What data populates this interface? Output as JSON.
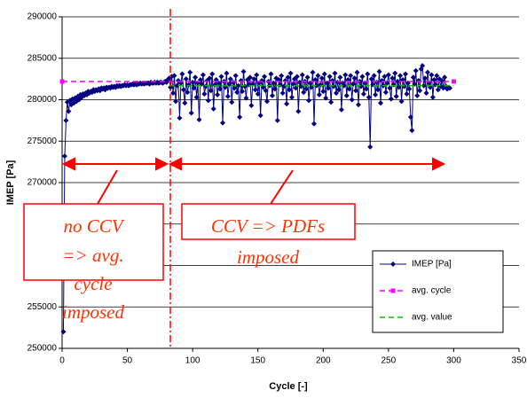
{
  "chart_data": {
    "type": "line",
    "x_label": "Cycle [-]",
    "y_label": "IMEP [Pa]",
    "xlim": [
      0,
      350
    ],
    "xticks": [
      0,
      50,
      100,
      150,
      200,
      250,
      300,
      350
    ],
    "ylim": [
      250000,
      290000
    ],
    "yticks": [
      250000,
      255000,
      260000,
      265000,
      270000,
      275000,
      280000,
      285000,
      290000
    ],
    "grid": true,
    "legend": "lower right",
    "annotations": [
      {
        "lines": [
          "no CCV",
          "=> avg.",
          "cycle",
          "imposed"
        ]
      },
      {
        "lines": [
          "CCV => PDFs",
          "imposed"
        ]
      }
    ],
    "series": [
      {
        "name": "IMEP [Pa]",
        "color": "#000080",
        "marker": "diamond",
        "x": [
          1,
          2,
          3,
          4,
          5,
          6,
          7,
          8,
          9,
          10,
          11,
          12,
          13,
          14,
          15,
          16,
          17,
          18,
          19,
          20,
          21,
          22,
          23,
          24,
          25,
          26,
          27,
          28,
          29,
          30,
          31,
          32,
          33,
          34,
          35,
          36,
          37,
          38,
          39,
          40,
          41,
          42,
          43,
          44,
          45,
          46,
          47,
          48,
          49,
          50,
          51,
          52,
          53,
          54,
          55,
          56,
          57,
          58,
          59,
          60,
          61,
          62,
          63,
          64,
          65,
          66,
          67,
          68,
          69,
          70,
          71,
          72,
          73,
          74,
          75,
          76,
          77,
          78,
          79,
          80,
          81,
          82,
          83,
          84,
          85,
          86,
          87,
          88,
          89,
          90,
          91,
          92,
          93,
          94,
          95,
          96,
          97,
          98,
          99,
          100,
          101,
          102,
          103,
          104,
          105,
          106,
          107,
          108,
          109,
          110,
          111,
          112,
          113,
          114,
          115,
          116,
          117,
          118,
          119,
          120,
          121,
          122,
          123,
          124,
          125,
          126,
          127,
          128,
          129,
          130,
          131,
          132,
          133,
          134,
          135,
          136,
          137,
          138,
          139,
          140,
          141,
          142,
          143,
          144,
          145,
          146,
          147,
          148,
          149,
          150,
          151,
          152,
          153,
          154,
          155,
          156,
          157,
          158,
          159,
          160,
          161,
          162,
          163,
          164,
          165,
          166,
          167,
          168,
          169,
          170,
          171,
          172,
          173,
          174,
          175,
          176,
          177,
          178,
          179,
          180,
          181,
          182,
          183,
          184,
          185,
          186,
          187,
          188,
          189,
          190,
          191,
          192,
          193,
          194,
          195,
          196,
          197,
          198,
          199,
          200,
          201,
          202,
          203,
          204,
          205,
          206,
          207,
          208,
          209,
          210,
          211,
          212,
          213,
          214,
          215,
          216,
          217,
          218,
          219,
          220,
          221,
          222,
          223,
          224,
          225,
          226,
          227,
          228,
          229,
          230,
          231,
          232,
          233,
          234,
          235,
          236,
          237,
          238,
          239,
          240,
          241,
          242,
          243,
          244,
          245,
          246,
          247,
          248,
          249,
          250,
          251,
          252,
          253,
          254,
          255,
          256,
          257,
          258,
          259,
          260,
          261,
          262,
          263,
          264,
          265,
          266,
          267,
          268,
          269,
          270,
          271,
          272,
          273,
          274,
          275,
          276,
          277,
          278,
          279,
          280,
          281,
          282,
          283,
          284,
          285,
          286,
          287,
          288,
          289,
          290,
          291,
          292,
          293,
          294,
          295,
          296,
          297
        ],
        "values": [
          252000,
          273200,
          277500,
          279700,
          278600,
          279900,
          279400,
          280100,
          279600,
          280200,
          279800,
          280400,
          280000,
          280600,
          280300,
          280700,
          280500,
          280800,
          280600,
          281000,
          280800,
          281000,
          280900,
          281200,
          281000,
          281200,
          281100,
          281300,
          281100,
          281400,
          281300,
          281400,
          281200,
          281500,
          281400,
          281500,
          281400,
          281600,
          281500,
          281600,
          281500,
          281700,
          281600,
          281700,
          281600,
          281700,
          281700,
          281800,
          281700,
          281800,
          281700,
          281800,
          281800,
          281900,
          281800,
          281900,
          281800,
          281900,
          281900,
          282000,
          281900,
          282000,
          281900,
          282000,
          282000,
          282000,
          281900,
          282100,
          282000,
          282000,
          282100,
          282000,
          282100,
          282000,
          282100,
          282100,
          282000,
          282100,
          282200,
          282100,
          282400,
          282600,
          281500,
          282800,
          280800,
          282900,
          279800,
          281700,
          282300,
          277800,
          282000,
          283100,
          281200,
          279600,
          282500,
          280900,
          281800,
          283300,
          278400,
          282100,
          281400,
          282700,
          280300,
          282000,
          277600,
          282400,
          281900,
          283000,
          280700,
          281600,
          282300,
          279900,
          282600,
          281100,
          283100,
          278900,
          281800,
          282400,
          280600,
          282000,
          281300,
          282800,
          277200,
          282200,
          281500,
          283200,
          280400,
          281900,
          282500,
          279700,
          282100,
          281400,
          282900,
          280900,
          281700,
          277900,
          282300,
          281000,
          283400,
          281600,
          280200,
          282400,
          281800,
          282700,
          279300,
          281900,
          282500,
          281200,
          283000,
          280700,
          282000,
          278100,
          282300,
          281500,
          282800,
          281100,
          279800,
          282200,
          281700,
          283100,
          280500,
          282000,
          281300,
          282600,
          277500,
          282400,
          281800,
          282900,
          280800,
          281600,
          282300,
          279500,
          282700,
          281200,
          283200,
          280300,
          281900,
          282500,
          281400,
          282800,
          278600,
          282100,
          281600,
          283000,
          280900,
          282200,
          281300,
          282700,
          279900,
          282000,
          281500,
          283300,
          277100,
          282400,
          281700,
          282900,
          280600,
          281800,
          282600,
          281000,
          283100,
          280200,
          282000,
          281400,
          282800,
          279700,
          282300,
          281600,
          283200,
          280800,
          282100,
          281200,
          282700,
          278800,
          282000,
          281700,
          283000,
          280500,
          282400,
          281300,
          282900,
          280000,
          281900,
          282600,
          281100,
          283300,
          279400,
          282200,
          281600,
          282800,
          280700,
          282000,
          281300,
          283100,
          280300,
          274300,
          282500,
          281800,
          282900,
          280600,
          282100,
          281200,
          283400,
          279600,
          282300,
          281700,
          282800,
          280900,
          282000,
          283000,
          281400,
          280100,
          282600,
          281800,
          283200,
          280400,
          282200,
          281500,
          282900,
          279800,
          282400,
          281600,
          283100,
          280700,
          282000,
          281300,
          277900,
          276300,
          282700,
          281900,
          283500,
          280500,
          282300,
          281100,
          283700,
          284100,
          281700,
          282600,
          280800,
          283300,
          282000,
          281500,
          283000,
          280300,
          282400,
          281800,
          282900,
          281200,
          282500,
          281600,
          282300,
          281400,
          282700,
          281600,
          281300,
          281500,
          281400
        ]
      },
      {
        "name": "avg. cycle",
        "color": "#ff00ff",
        "marker": "square",
        "dash": true,
        "x": [
          0,
          300
        ],
        "values": [
          282200,
          282200
        ]
      },
      {
        "name": "avg. value",
        "color": "#00c000",
        "dash": true,
        "x": [
          82,
          300
        ],
        "values": [
          281700,
          281700
        ]
      }
    ]
  }
}
